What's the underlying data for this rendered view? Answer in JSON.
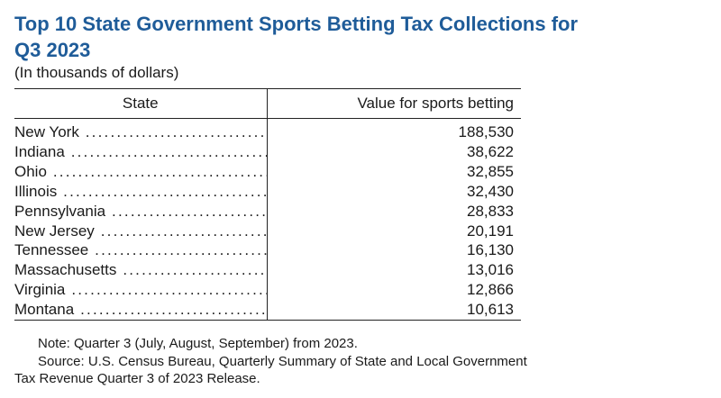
{
  "title": "Top 10 State Government Sports Betting Tax Collections for Q3 2023",
  "subtitle": "(In thousands of dollars)",
  "table": {
    "headers": {
      "state": "State",
      "value": "Value for sports betting"
    },
    "rows": [
      {
        "state": "New York",
        "value": "188,530"
      },
      {
        "state": "Indiana",
        "value": "38,622"
      },
      {
        "state": "Ohio",
        "value": "32,855"
      },
      {
        "state": "Illinois",
        "value": "32,430"
      },
      {
        "state": "Pennsylvania",
        "value": "28,833"
      },
      {
        "state": "New Jersey",
        "value": "20,191"
      },
      {
        "state": "Tennessee",
        "value": "16,130"
      },
      {
        "state": "Massachusetts",
        "value": "13,016"
      },
      {
        "state": "Virginia",
        "value": "12,866"
      },
      {
        "state": "Montana",
        "value": "10,613"
      }
    ]
  },
  "notes": {
    "note": "Note: Quarter 3 (July, August, September) from 2023.",
    "source": "Source: U.S. Census Bureau, Quarterly Summary of State and Local Government Tax Revenue Quarter 3 of 2023 Release."
  },
  "colors": {
    "title": "#1f5c99",
    "text": "#1a1a1a"
  }
}
